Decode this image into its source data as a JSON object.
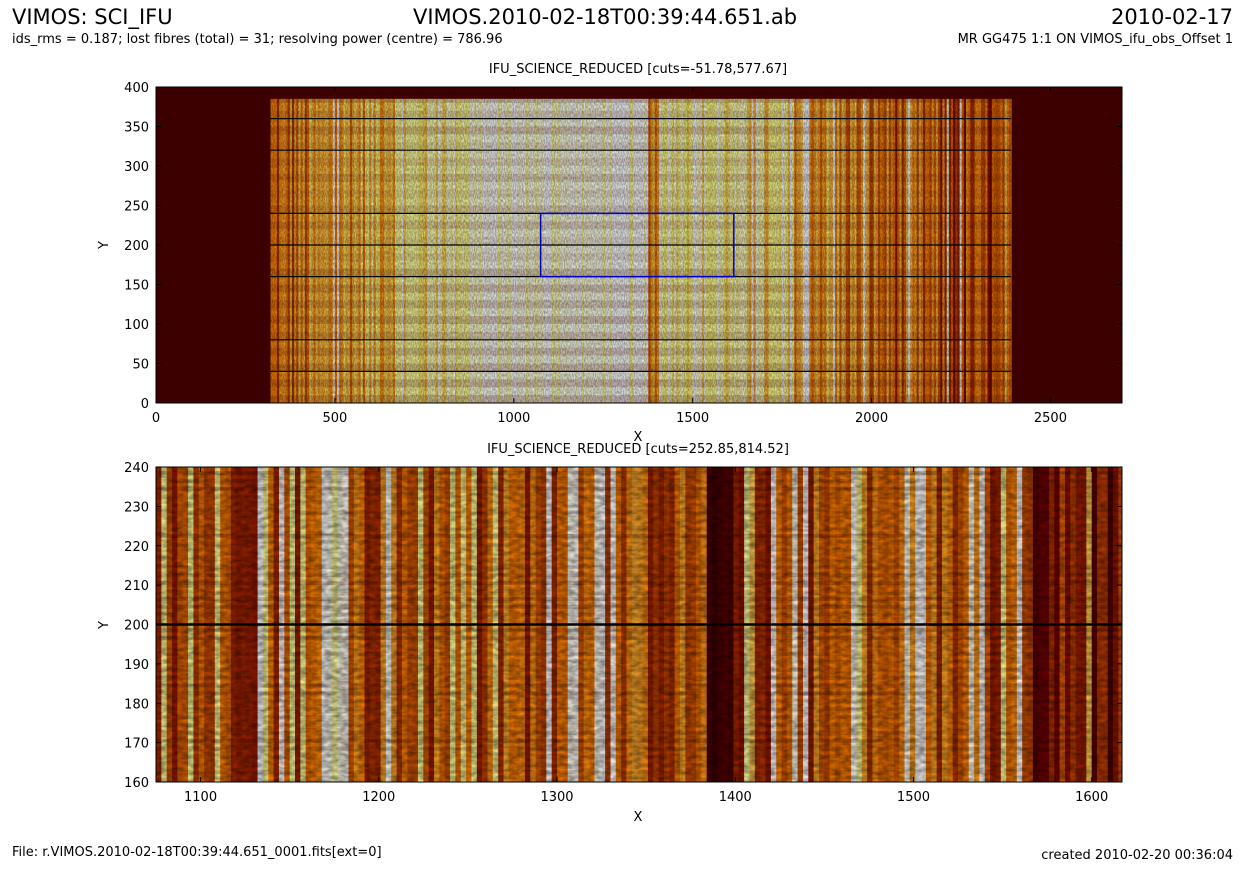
{
  "header": {
    "left_title": "VIMOS: SCI_IFU",
    "center_title": "VIMOS.2010-02-18T00:39:44.651.ab",
    "right_date": "2010-02-17",
    "subtitle_left": "ids_rms = 0.187; lost fibres (total) = 31; resolving power (centre) =  786.96",
    "subtitle_right": "MR GG475 1:1 ON VIMOS_ifu_obs_Offset 1"
  },
  "footer": {
    "file": "File: r.VIMOS.2010-02-18T00:39:44.651_0001.fits[ext=0]",
    "created": "created 2010-02-20 00:36:04"
  },
  "colors": {
    "zoom_box": "#0000cc",
    "background_dark": "#3d0000",
    "colormap": "afmhot"
  },
  "chart_data": [
    {
      "type": "heatmap",
      "title": "IFU_SCIENCE_REDUCED [cuts=-51.78,577.67]",
      "xlabel": "X",
      "ylabel": "Y",
      "xlim": [
        0,
        2700
      ],
      "ylim": [
        0,
        400
      ],
      "xticks": [
        0,
        500,
        1000,
        1500,
        2000,
        2500
      ],
      "yticks": [
        0,
        50,
        100,
        150,
        200,
        250,
        300,
        350,
        400
      ],
      "data_extent_x": [
        320,
        2390
      ],
      "data_extent_y": [
        0,
        385
      ],
      "zoom_region": {
        "x": [
          1075,
          1615
        ],
        "y": [
          160,
          240
        ]
      },
      "dark_rows_y": [
        40,
        80,
        160,
        200,
        240,
        320,
        360
      ]
    },
    {
      "type": "heatmap",
      "title": "IFU_SCIENCE_REDUCED [cuts=252.85,814.52]",
      "xlabel": "X",
      "ylabel": "Y",
      "xlim": [
        1075,
        1617
      ],
      "ylim": [
        160,
        240
      ],
      "xticks": [
        1100,
        1200,
        1300,
        1400,
        1500,
        1600
      ],
      "yticks": [
        160,
        170,
        180,
        190,
        200,
        210,
        220,
        230,
        240
      ],
      "dark_rows_y": [
        200
      ],
      "dark_band_x": [
        1382,
        1396
      ]
    }
  ]
}
